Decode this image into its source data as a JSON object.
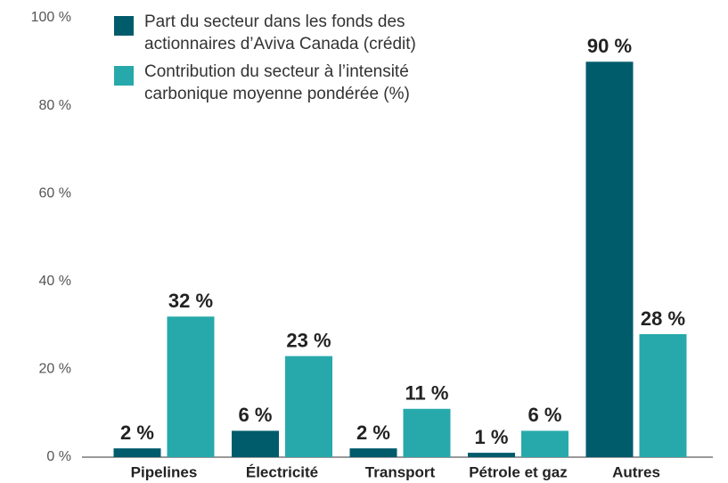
{
  "chart_data": {
    "type": "bar",
    "categories": [
      "Pipelines",
      "Électricité",
      "Transport",
      "Pétrole et gaz",
      "Autres"
    ],
    "series": [
      {
        "name": "Part du secteur dans les fonds des actionnaires d’Aviva Canada (crédit)",
        "color": "#005b6b",
        "values": [
          2,
          6,
          2,
          1,
          90
        ],
        "value_labels": [
          "2 %",
          "6 %",
          "2 %",
          "1 %",
          "90 %"
        ]
      },
      {
        "name": "Contribution du secteur à l’intensité carbonique moyenne pondérée (%)",
        "color": "#27a9ab",
        "values": [
          32,
          23,
          11,
          6,
          28
        ],
        "value_labels": [
          "32 %",
          "23 %",
          "11 %",
          "6 %",
          "28 %"
        ]
      }
    ],
    "ylim": [
      0,
      100
    ],
    "yticks": [
      {
        "value": 0,
        "label": "0 %"
      },
      {
        "value": 20,
        "label": "20 %"
      },
      {
        "value": 40,
        "label": "40 %"
      },
      {
        "value": 60,
        "label": "60 %"
      },
      {
        "value": 80,
        "label": "80 %"
      },
      {
        "value": 100,
        "label": "100 %"
      }
    ],
    "grid": false,
    "legend": "top-left"
  }
}
